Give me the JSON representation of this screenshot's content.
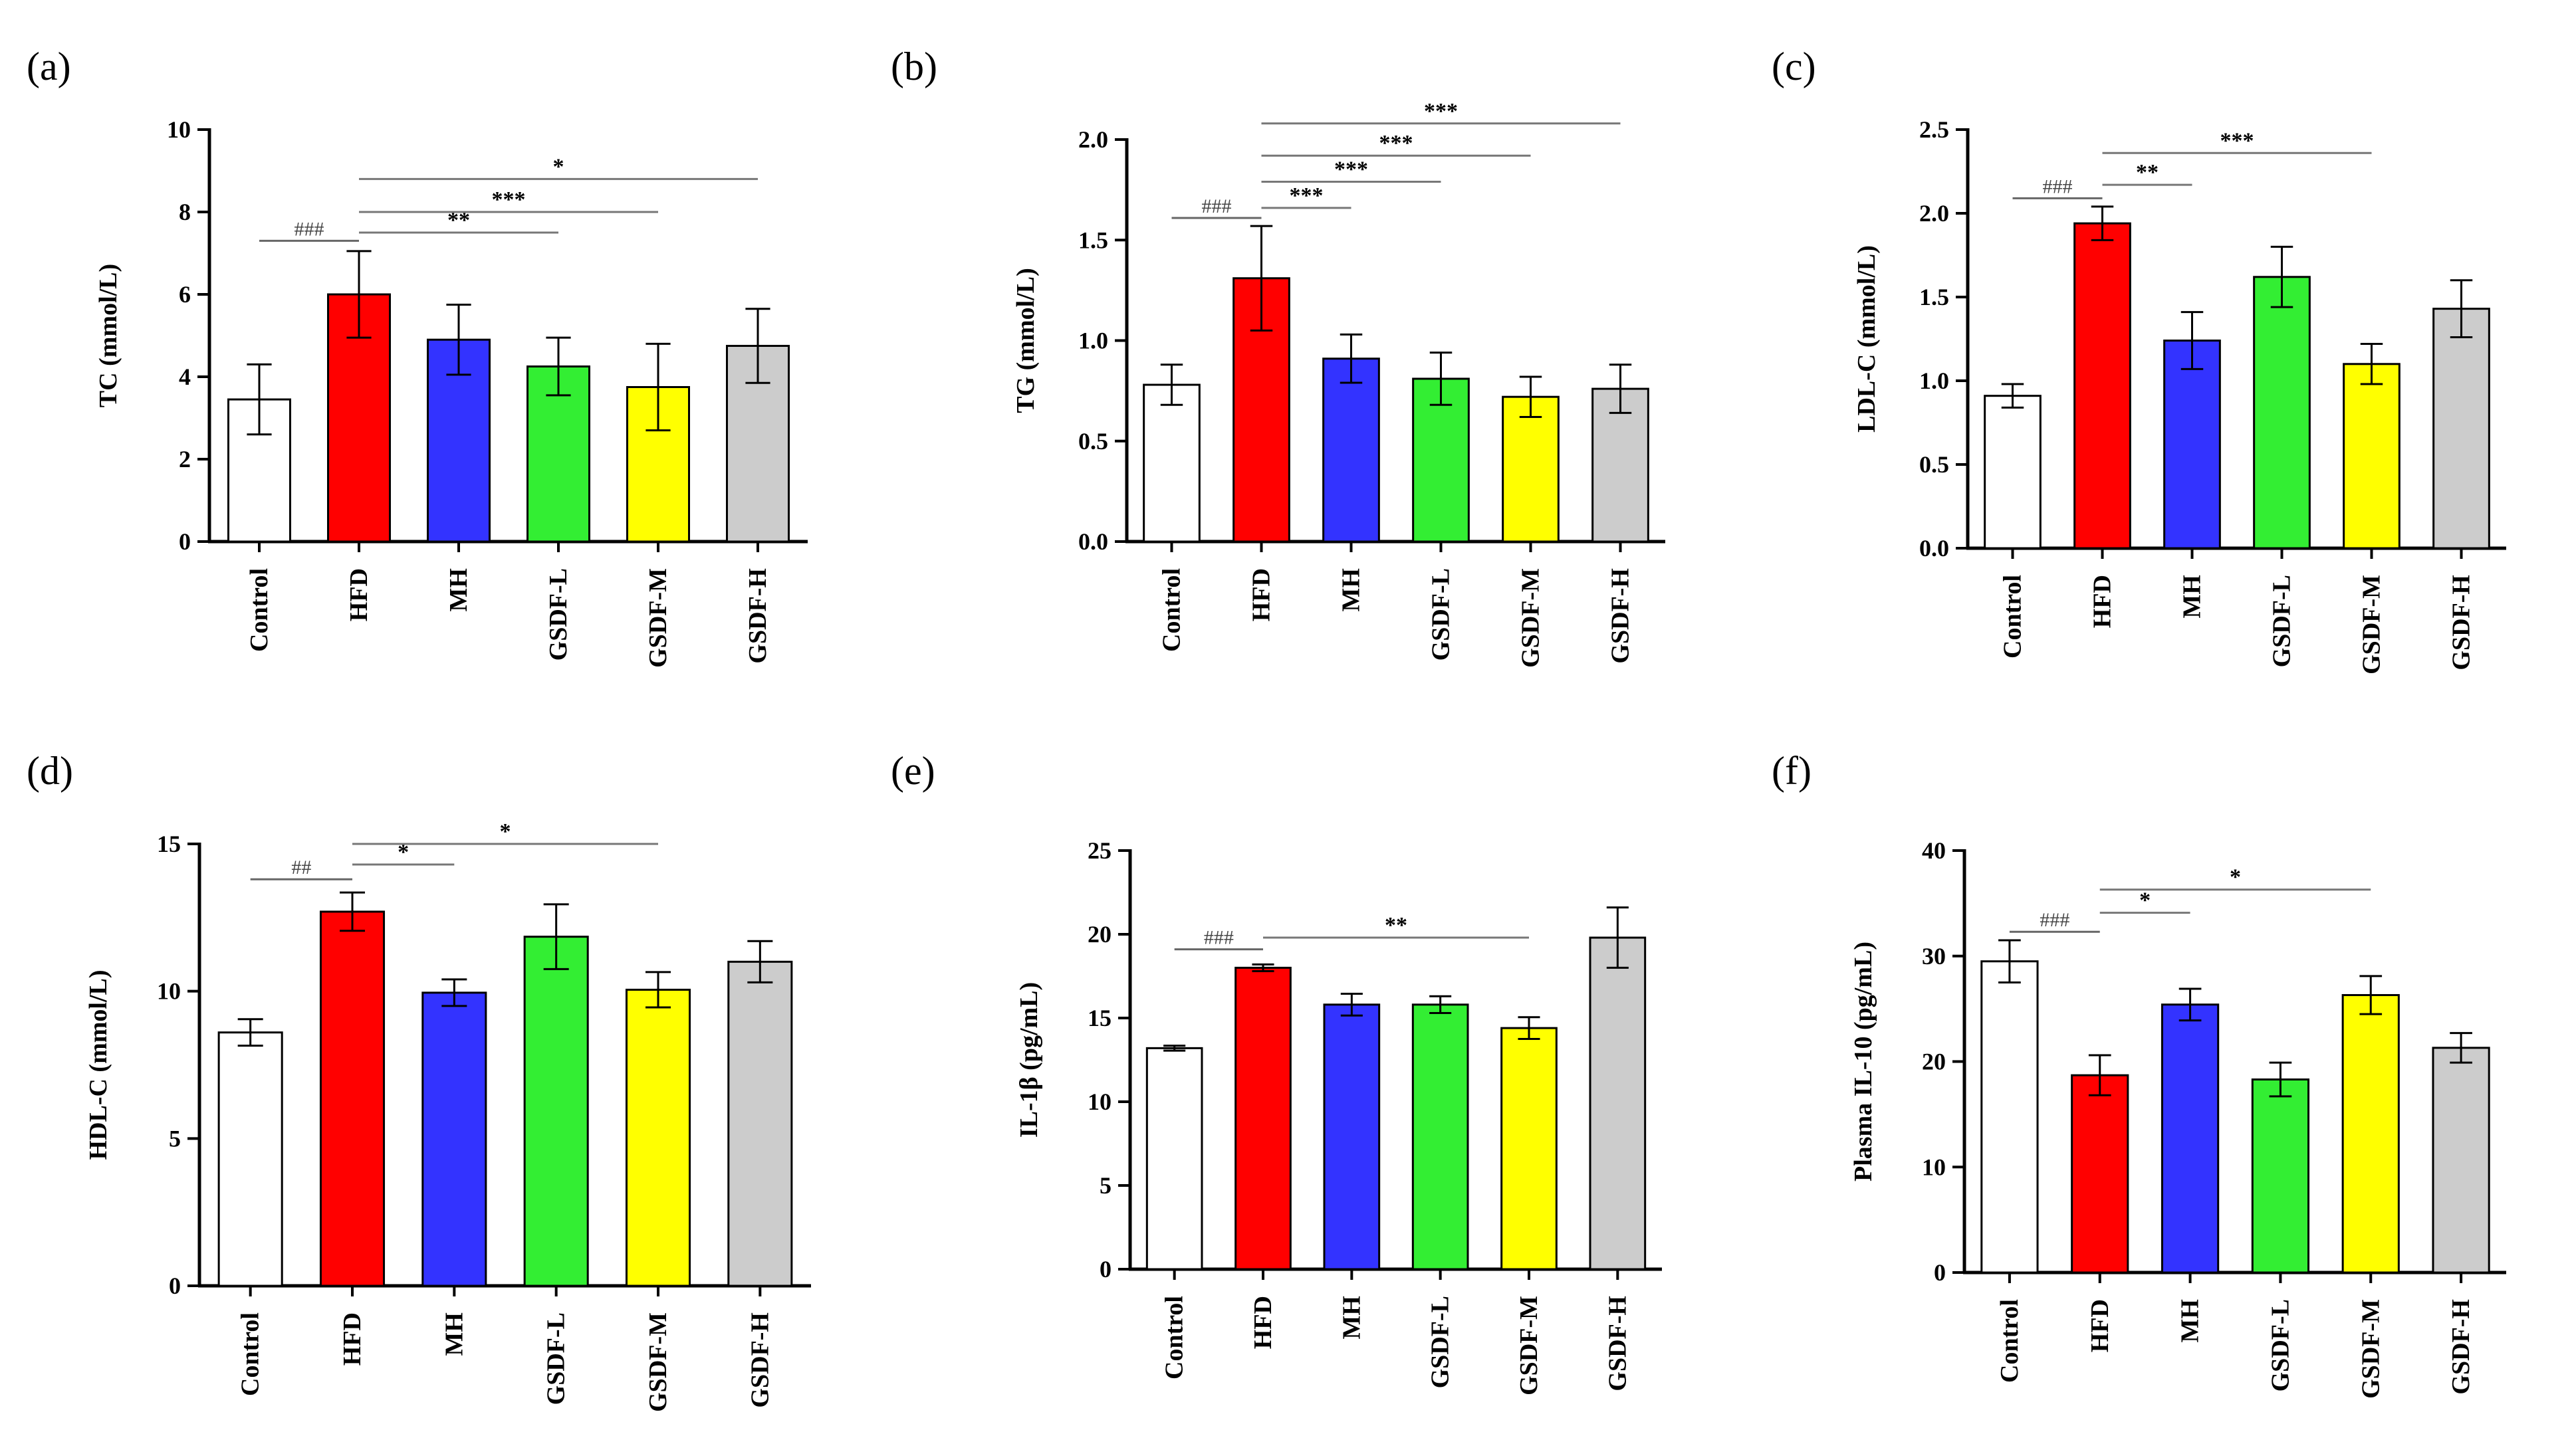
{
  "chart_data": [
    {
      "panel": "(a)",
      "type": "bar",
      "ylabel": "TC (mmol/L)",
      "ylim": [
        0,
        10
      ],
      "yticks": [
        0,
        2,
        4,
        6,
        8,
        10
      ],
      "tick_format": 0,
      "categories": [
        "Control",
        "HFD",
        "MH",
        "GSDF-L",
        "GSDF-M",
        "GSDF-H"
      ],
      "values": [
        3.45,
        6.0,
        4.9,
        4.25,
        3.75,
        4.75
      ],
      "errors": [
        0.85,
        1.05,
        0.85,
        0.7,
        1.05,
        0.9
      ],
      "comparisons": [
        {
          "from": 0,
          "to": 1,
          "y": 7.3,
          "label": "###"
        },
        {
          "from": 1,
          "to": 3,
          "y": 7.5,
          "label": "**"
        },
        {
          "from": 1,
          "to": 4,
          "y": 8.0,
          "label": "***"
        },
        {
          "from": 1,
          "to": 5,
          "y": 8.8,
          "label": "*"
        }
      ]
    },
    {
      "panel": "(b)",
      "type": "bar",
      "ylabel": "TG (mmol/L)",
      "ylim": [
        0,
        2.0
      ],
      "yticks": [
        0,
        0.5,
        1.0,
        1.5,
        2.0
      ],
      "tick_format": 1,
      "categories": [
        "Control",
        "HFD",
        "MH",
        "GSDF-L",
        "GSDF-M",
        "GSDF-H"
      ],
      "values": [
        0.78,
        1.31,
        0.91,
        0.81,
        0.72,
        0.76
      ],
      "errors": [
        0.1,
        0.26,
        0.12,
        0.13,
        0.1,
        0.12
      ],
      "comparisons": [
        {
          "from": 0,
          "to": 1,
          "y": 1.61,
          "label": "###"
        },
        {
          "from": 1,
          "to": 2,
          "y": 1.66,
          "label": "***"
        },
        {
          "from": 1,
          "to": 3,
          "y": 1.79,
          "label": "***"
        },
        {
          "from": 1,
          "to": 4,
          "y": 1.92,
          "label": "***"
        },
        {
          "from": 1,
          "to": 5,
          "y": 2.08,
          "label": "***"
        }
      ]
    },
    {
      "panel": "(c)",
      "type": "bar",
      "ylabel": "LDL-C (mmol/L)",
      "ylim": [
        0,
        2.5
      ],
      "yticks": [
        0,
        0.5,
        1.0,
        1.5,
        2.0,
        2.5
      ],
      "tick_format": 1,
      "categories": [
        "Control",
        "HFD",
        "MH",
        "GSDF-L",
        "GSDF-M",
        "GSDF-H"
      ],
      "values": [
        0.91,
        1.94,
        1.24,
        1.62,
        1.1,
        1.43
      ],
      "errors": [
        0.07,
        0.1,
        0.17,
        0.18,
        0.12,
        0.17
      ],
      "comparisons": [
        {
          "from": 0,
          "to": 1,
          "y": 2.09,
          "label": "###"
        },
        {
          "from": 1,
          "to": 2,
          "y": 2.17,
          "label": "**"
        },
        {
          "from": 1,
          "to": 4,
          "y": 2.36,
          "label": "***"
        }
      ]
    },
    {
      "panel": "(d)",
      "type": "bar",
      "ylabel": "HDL-C (mmol/L)",
      "ylim": [
        0,
        15
      ],
      "yticks": [
        0,
        5,
        10,
        15
      ],
      "tick_format": 0,
      "categories": [
        "Control",
        "HFD",
        "MH",
        "GSDF-L",
        "GSDF-M",
        "GSDF-H"
      ],
      "values": [
        8.6,
        12.7,
        9.95,
        11.85,
        10.05,
        11.0
      ],
      "errors": [
        0.45,
        0.65,
        0.45,
        1.1,
        0.6,
        0.7
      ],
      "comparisons": [
        {
          "from": 0,
          "to": 1,
          "y": 13.8,
          "label": "##"
        },
        {
          "from": 1,
          "to": 2,
          "y": 14.3,
          "label": "*"
        },
        {
          "from": 1,
          "to": 4,
          "y": 15.0,
          "label": "*"
        }
      ]
    },
    {
      "panel": "(e)",
      "type": "bar",
      "ylabel": "IL-1β (pg/mL)",
      "ylim": [
        0,
        25
      ],
      "yticks": [
        0,
        5,
        10,
        15,
        20,
        25
      ],
      "tick_format": 0,
      "categories": [
        "Control",
        "HFD",
        "MH",
        "GSDF-L",
        "GSDF-M",
        "GSDF-H"
      ],
      "values": [
        13.2,
        18.0,
        15.8,
        15.8,
        14.4,
        19.8
      ],
      "errors": [
        0.15,
        0.2,
        0.65,
        0.5,
        0.65,
        1.8
      ],
      "comparisons": [
        {
          "from": 0,
          "to": 1,
          "y": 19.1,
          "label": "###"
        },
        {
          "from": 1,
          "to": 4,
          "y": 19.8,
          "label": "**"
        }
      ]
    },
    {
      "panel": "(f)",
      "type": "bar",
      "ylabel": "Plasma IL-10 (pg/mL)",
      "ylim": [
        0,
        40
      ],
      "yticks": [
        0,
        10,
        20,
        30,
        40
      ],
      "tick_format": 0,
      "categories": [
        "Control",
        "HFD",
        "MH",
        "GSDF-L",
        "GSDF-M",
        "GSDF-H"
      ],
      "values": [
        29.5,
        18.7,
        25.4,
        18.3,
        26.3,
        21.3
      ],
      "errors": [
        2.0,
        1.9,
        1.5,
        1.6,
        1.8,
        1.4
      ],
      "comparisons": [
        {
          "from": 0,
          "to": 1,
          "y": 32.3,
          "label": "###"
        },
        {
          "from": 1,
          "to": 2,
          "y": 34.1,
          "label": "*"
        },
        {
          "from": 1,
          "to": 4,
          "y": 36.3,
          "label": "*"
        }
      ]
    }
  ],
  "colors": {
    "bars": [
      "#ffffff",
      "#ff0000",
      "#3333ff",
      "#33ee33",
      "#ffff00",
      "#cccccc"
    ],
    "axis": "#000000",
    "comparison_line": "#777777"
  }
}
